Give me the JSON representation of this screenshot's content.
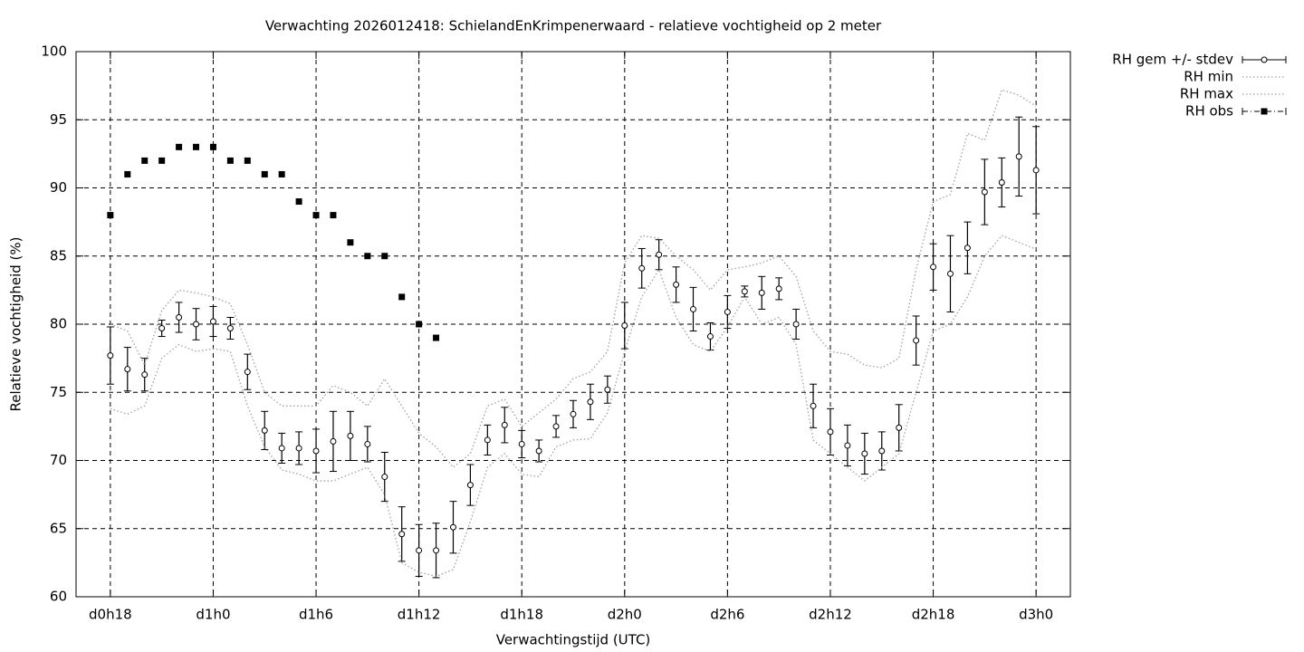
{
  "chart_data": {
    "type": "line",
    "title": "Verwachting 2026012418: SchielandEnKrimpenerwaard - relatieve vochtigheid op 2 meter",
    "xlabel": "Verwachtingstijd (UTC)",
    "ylabel": "Relatieve vochtigheid (%)",
    "x": [
      18,
      19,
      20,
      21,
      22,
      23,
      24,
      25,
      26,
      27,
      28,
      29,
      30,
      31,
      32,
      33,
      34,
      35,
      36,
      37,
      38,
      39,
      40,
      41,
      42,
      43,
      44,
      45,
      46,
      47,
      48,
      49,
      50,
      51,
      52,
      53,
      54,
      55,
      56,
      57,
      58,
      59,
      60,
      61,
      62,
      63,
      64,
      65,
      66,
      67,
      68,
      69,
      70,
      71,
      72
    ],
    "xlim": [
      16,
      74
    ],
    "xticks": [
      {
        "value": 18,
        "label": "d0h18"
      },
      {
        "value": 24,
        "label": "d1h0"
      },
      {
        "value": 30,
        "label": "d1h6"
      },
      {
        "value": 36,
        "label": "d1h12"
      },
      {
        "value": 42,
        "label": "d1h18"
      },
      {
        "value": 48,
        "label": "d2h0"
      },
      {
        "value": 54,
        "label": "d2h6"
      },
      {
        "value": 60,
        "label": "d2h12"
      },
      {
        "value": 66,
        "label": "d2h18"
      },
      {
        "value": 72,
        "label": "d3h0"
      }
    ],
    "ylim": [
      60,
      100
    ],
    "yticks": [
      60,
      65,
      70,
      75,
      80,
      85,
      90,
      95,
      100
    ],
    "grid": true,
    "legend": "outside-top-right",
    "series": [
      {
        "name": "RH gem +/- stdev",
        "color": "#000000",
        "style": "errorbars",
        "values": [
          77.7,
          76.7,
          76.3,
          79.7,
          80.5,
          80.0,
          80.2,
          79.7,
          76.5,
          72.2,
          70.9,
          70.9,
          70.7,
          71.4,
          71.8,
          71.2,
          68.8,
          64.6,
          63.4,
          63.4,
          65.1,
          68.2,
          71.5,
          72.6,
          71.2,
          70.7,
          72.5,
          73.4,
          74.3,
          75.2,
          79.9,
          84.1,
          85.1,
          82.9,
          81.1,
          79.1,
          80.9,
          82.4,
          82.3,
          82.6,
          80.0,
          74.0,
          72.1,
          71.1,
          70.5,
          70.7,
          72.4,
          78.8,
          84.2,
          83.7,
          85.6,
          89.7,
          90.4,
          92.3,
          91.3
        ],
        "errors": [
          2.1,
          1.6,
          1.2,
          0.6,
          1.1,
          1.15,
          1.1,
          0.8,
          1.3,
          1.4,
          1.1,
          1.2,
          1.6,
          2.2,
          1.8,
          1.3,
          1.8,
          2.0,
          1.9,
          2.0,
          1.9,
          1.5,
          1.1,
          1.3,
          1.0,
          0.8,
          0.8,
          1.0,
          1.3,
          1.0,
          1.7,
          1.45,
          1.1,
          1.3,
          1.6,
          1.0,
          1.2,
          0.4,
          1.2,
          0.8,
          1.1,
          1.6,
          1.7,
          1.5,
          1.5,
          1.4,
          1.7,
          1.8,
          1.7,
          2.8,
          1.9,
          2.4,
          1.8,
          2.9,
          3.2
        ]
      },
      {
        "name": "RH min",
        "color": "#a0a0a0",
        "style": "dotted",
        "values": [
          73.8,
          73.4,
          74.0,
          77.5,
          78.5,
          78.0,
          78.2,
          78.0,
          74.0,
          71.0,
          69.3,
          69.0,
          68.5,
          68.5,
          69.0,
          69.5,
          67.5,
          62.5,
          61.8,
          61.5,
          62.0,
          65.5,
          69.5,
          70.5,
          69.0,
          68.8,
          71.0,
          71.5,
          71.6,
          73.5,
          78.0,
          82.0,
          84.0,
          80.5,
          78.5,
          78.0,
          79.8,
          82.0,
          80.0,
          80.5,
          78.5,
          71.5,
          70.5,
          69.5,
          68.5,
          69.5,
          70.5,
          75.0,
          79.5,
          80.0,
          82.0,
          85.0,
          86.5,
          86.0,
          85.5
        ]
      },
      {
        "name": "RH max",
        "color": "#a0a0a0",
        "style": "dotted",
        "values": [
          80.0,
          79.5,
          77.0,
          81.0,
          82.5,
          82.3,
          82.0,
          81.5,
          78.5,
          75.0,
          74.0,
          74.0,
          74.0,
          75.5,
          75.0,
          74.0,
          76.0,
          74.0,
          72.0,
          71.0,
          69.5,
          70.5,
          74.0,
          74.5,
          72.5,
          73.5,
          74.5,
          76.0,
          76.5,
          78.0,
          84.5,
          86.5,
          86.3,
          85.0,
          84.0,
          82.5,
          84.0,
          84.2,
          84.5,
          85.0,
          83.5,
          79.5,
          78.0,
          77.8,
          77.0,
          76.8,
          77.5,
          84.0,
          89.0,
          89.5,
          94.0,
          93.5,
          97.2,
          96.8,
          96.0
        ]
      },
      {
        "name": "RH obs",
        "color": "#000000",
        "style": "points",
        "values": [
          88,
          91,
          92,
          92,
          93,
          93,
          93,
          92,
          92,
          91,
          91,
          89,
          88,
          88,
          86,
          85,
          85,
          82,
          80,
          79,
          null,
          null,
          null,
          null,
          null,
          null,
          null,
          null,
          null,
          null,
          null,
          null,
          null,
          null,
          null,
          null,
          null,
          null,
          null,
          null,
          null,
          null,
          null,
          null,
          null,
          null,
          null,
          null,
          null,
          null,
          null,
          null,
          null,
          null,
          null
        ]
      }
    ]
  }
}
